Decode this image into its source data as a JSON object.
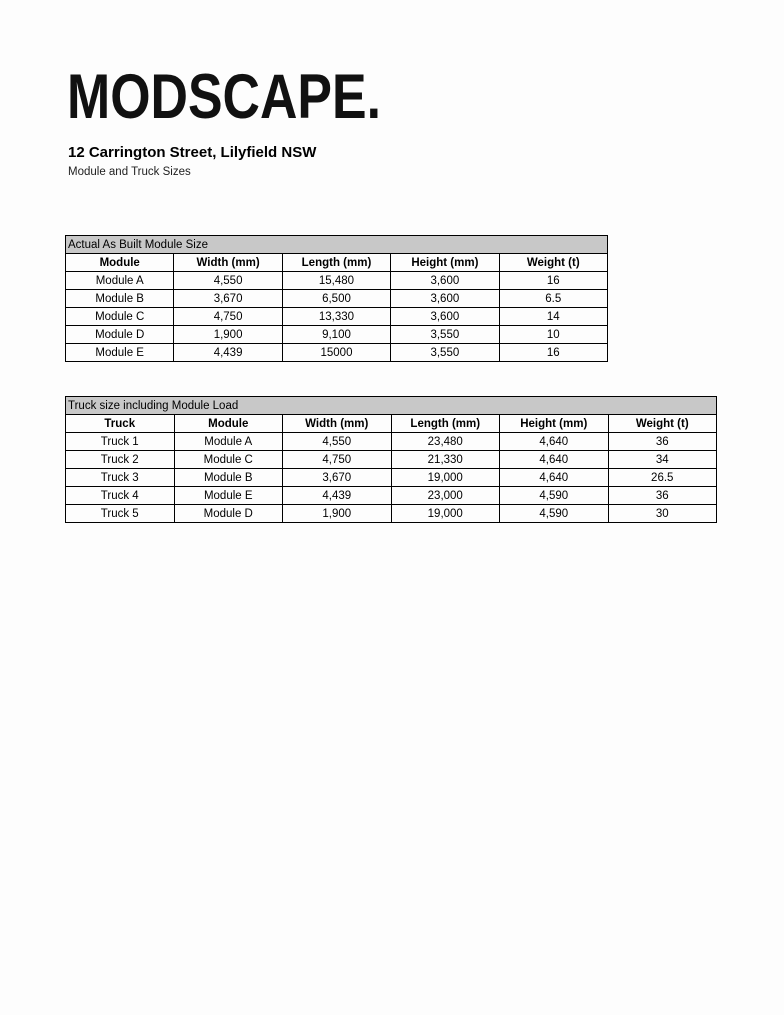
{
  "logo": {
    "text": "MODSCAPE."
  },
  "header": {
    "title": "12 Carrington Street, Lilyfield NSW",
    "subtitle": "Module and Truck Sizes"
  },
  "module_table": {
    "caption": "Actual As Built Module Size",
    "columns": [
      "Module",
      "Width (mm)",
      "Length (mm)",
      "Height (mm)",
      "Weight (t)"
    ],
    "rows": [
      [
        "Module A",
        "4,550",
        "15,480",
        "3,600",
        "16"
      ],
      [
        "Module B",
        "3,670",
        "6,500",
        "3,600",
        "6.5"
      ],
      [
        "Module C",
        "4,750",
        "13,330",
        "3,600",
        "14"
      ],
      [
        "Module D",
        "1,900",
        "9,100",
        "3,550",
        "10"
      ],
      [
        "Module E",
        "4,439",
        "15000",
        "3,550",
        "16"
      ]
    ]
  },
  "truck_table": {
    "caption": "Truck size including Module Load",
    "columns": [
      "Truck",
      "Module",
      "Width (mm)",
      "Length (mm)",
      "Height (mm)",
      "Weight (t)"
    ],
    "rows": [
      [
        "Truck 1",
        "Module A",
        "4,550",
        "23,480",
        "4,640",
        "36"
      ],
      [
        "Truck 2",
        "Module C",
        "4,750",
        "21,330",
        "4,640",
        "34"
      ],
      [
        "Truck 3",
        "Module B",
        "3,670",
        "19,000",
        "4,640",
        "26.5"
      ],
      [
        "Truck 4",
        "Module E",
        "4,439",
        "23,000",
        "4,590",
        "36"
      ],
      [
        "Truck 5",
        "Module D",
        "1,900",
        "19,000",
        "4,590",
        "30"
      ]
    ]
  }
}
